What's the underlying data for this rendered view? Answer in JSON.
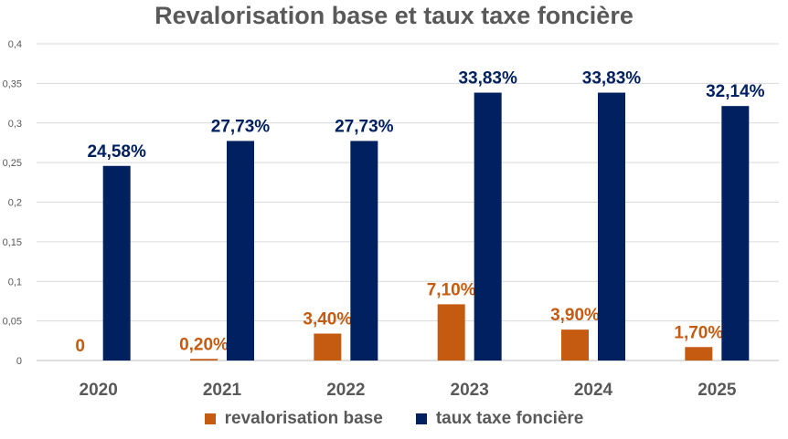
{
  "chart_data": {
    "type": "bar",
    "title": "Revalorisation base et taux taxe foncière",
    "categories": [
      "2020",
      "2021",
      "2022",
      "2023",
      "2024",
      "2025"
    ],
    "series": [
      {
        "name": "revalorisation base",
        "values": [
          0,
          0.002,
          0.034,
          0.071,
          0.039,
          0.017
        ],
        "labels": [
          "0",
          "0,20%",
          "3,40%",
          "7,10%",
          "3,90%",
          "1,70%"
        ],
        "color": "#C55A11"
      },
      {
        "name": "taux taxe foncière",
        "values": [
          0.2458,
          0.2773,
          0.2773,
          0.3383,
          0.3383,
          0.3214
        ],
        "labels": [
          "24,58%",
          "27,73%",
          "27,73%",
          "33,83%",
          "33,83%",
          "32,14%"
        ],
        "color": "#002060"
      }
    ],
    "ylim": [
      0,
      0.4
    ],
    "yticks": [
      "0",
      "0,05",
      "0,1",
      "0,15",
      "0,2",
      "0,25",
      "0,3",
      "0,35",
      "0,4"
    ],
    "grid": true,
    "legend_position": "bottom"
  }
}
